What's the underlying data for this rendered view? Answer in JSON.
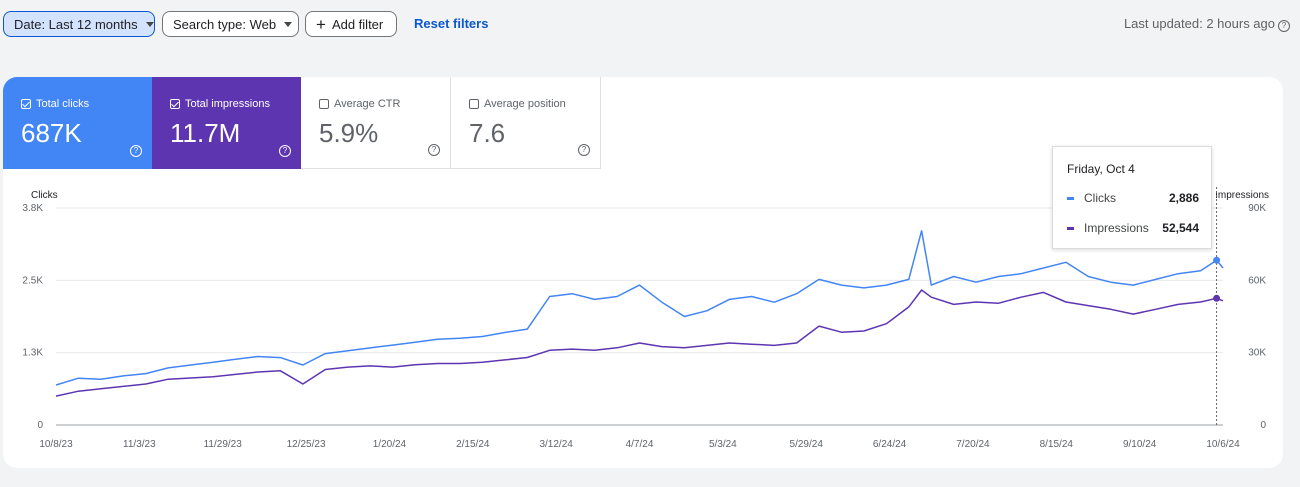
{
  "filters": {
    "date_label": "Date: Last 12 months",
    "search_type_label": "Search type: Web",
    "add_filter_label": "Add filter",
    "reset_label": "Reset filters",
    "last_updated": "Last updated: 2 hours ago"
  },
  "metrics": [
    {
      "label": "Total clicks",
      "value": "687K",
      "checked": true,
      "color": "#4285f4"
    },
    {
      "label": "Total impressions",
      "value": "11.7M",
      "checked": true,
      "color": "#5e35b1"
    },
    {
      "label": "Average CTR",
      "value": "5.9%",
      "checked": false
    },
    {
      "label": "Average position",
      "value": "7.6",
      "checked": false
    }
  ],
  "tooltip": {
    "date": "Friday, Oct 4",
    "clicks_label": "Clicks",
    "clicks_value": "2,886",
    "impressions_label": "Impressions",
    "impressions_value": "52,544"
  },
  "chart_data": {
    "type": "line",
    "left_axis_label": "Clicks",
    "right_axis_label": "Impressions",
    "left_ticks": [
      "0",
      "1.3K",
      "2.5K",
      "3.8K"
    ],
    "right_ticks": [
      "0",
      "30K",
      "60K",
      "90K"
    ],
    "left_ylim": [
      0,
      3800
    ],
    "right_ylim": [
      0,
      90000
    ],
    "x_ticks": [
      "10/8/23",
      "11/3/23",
      "11/29/23",
      "12/25/23",
      "1/20/24",
      "2/15/24",
      "3/12/24",
      "4/7/24",
      "5/3/24",
      "5/29/24",
      "6/24/24",
      "7/20/24",
      "8/15/24",
      "9/10/24",
      "10/6/24"
    ],
    "x_range": [
      "2023-10-08",
      "2024-10-06"
    ],
    "grid": true,
    "highlight_date": "2024-10-04",
    "series": [
      {
        "name": "Clicks",
        "axis": "left",
        "color": "#4285f4",
        "points": [
          [
            "2023-10-08",
            700
          ],
          [
            "2023-10-15",
            820
          ],
          [
            "2023-10-22",
            800
          ],
          [
            "2023-10-29",
            860
          ],
          [
            "2023-11-05",
            900
          ],
          [
            "2023-11-12",
            1000
          ],
          [
            "2023-11-19",
            1050
          ],
          [
            "2023-11-26",
            1100
          ],
          [
            "2023-12-03",
            1150
          ],
          [
            "2023-12-10",
            1200
          ],
          [
            "2023-12-17",
            1180
          ],
          [
            "2023-12-24",
            1050
          ],
          [
            "2023-12-31",
            1250
          ],
          [
            "2024-01-07",
            1300
          ],
          [
            "2024-01-14",
            1350
          ],
          [
            "2024-01-21",
            1400
          ],
          [
            "2024-01-28",
            1450
          ],
          [
            "2024-02-04",
            1500
          ],
          [
            "2024-02-11",
            1520
          ],
          [
            "2024-02-18",
            1550
          ],
          [
            "2024-02-25",
            1620
          ],
          [
            "2024-03-03",
            1680
          ],
          [
            "2024-03-10",
            2250
          ],
          [
            "2024-03-17",
            2300
          ],
          [
            "2024-03-24",
            2200
          ],
          [
            "2024-03-31",
            2250
          ],
          [
            "2024-04-07",
            2450
          ],
          [
            "2024-04-14",
            2150
          ],
          [
            "2024-04-21",
            1900
          ],
          [
            "2024-04-28",
            2000
          ],
          [
            "2024-05-05",
            2200
          ],
          [
            "2024-05-12",
            2250
          ],
          [
            "2024-05-19",
            2150
          ],
          [
            "2024-05-26",
            2300
          ],
          [
            "2024-06-02",
            2550
          ],
          [
            "2024-06-09",
            2450
          ],
          [
            "2024-06-16",
            2400
          ],
          [
            "2024-06-23",
            2450
          ],
          [
            "2024-06-30",
            2550
          ],
          [
            "2024-07-04",
            3400
          ],
          [
            "2024-07-07",
            2450
          ],
          [
            "2024-07-14",
            2600
          ],
          [
            "2024-07-21",
            2500
          ],
          [
            "2024-07-28",
            2600
          ],
          [
            "2024-08-04",
            2650
          ],
          [
            "2024-08-11",
            2750
          ],
          [
            "2024-08-18",
            2850
          ],
          [
            "2024-08-25",
            2600
          ],
          [
            "2024-09-01",
            2500
          ],
          [
            "2024-09-08",
            2450
          ],
          [
            "2024-09-15",
            2550
          ],
          [
            "2024-09-22",
            2650
          ],
          [
            "2024-09-29",
            2700
          ],
          [
            "2024-10-04",
            2886
          ],
          [
            "2024-10-06",
            2750
          ]
        ]
      },
      {
        "name": "Impressions",
        "axis": "right",
        "color": "#5e35b1",
        "points": [
          [
            "2023-10-08",
            12000
          ],
          [
            "2023-10-15",
            14000
          ],
          [
            "2023-10-22",
            15000
          ],
          [
            "2023-10-29",
            16000
          ],
          [
            "2023-11-05",
            17000
          ],
          [
            "2023-11-12",
            19000
          ],
          [
            "2023-11-19",
            19500
          ],
          [
            "2023-11-26",
            20000
          ],
          [
            "2023-12-03",
            21000
          ],
          [
            "2023-12-10",
            22000
          ],
          [
            "2023-12-17",
            22500
          ],
          [
            "2023-12-24",
            17000
          ],
          [
            "2023-12-31",
            23000
          ],
          [
            "2024-01-07",
            24000
          ],
          [
            "2024-01-14",
            24500
          ],
          [
            "2024-01-21",
            24000
          ],
          [
            "2024-01-28",
            25000
          ],
          [
            "2024-02-04",
            25500
          ],
          [
            "2024-02-11",
            25500
          ],
          [
            "2024-02-18",
            26000
          ],
          [
            "2024-02-25",
            27000
          ],
          [
            "2024-03-03",
            28000
          ],
          [
            "2024-03-10",
            31000
          ],
          [
            "2024-03-17",
            31500
          ],
          [
            "2024-03-24",
            31000
          ],
          [
            "2024-03-31",
            32000
          ],
          [
            "2024-04-07",
            34000
          ],
          [
            "2024-04-14",
            32500
          ],
          [
            "2024-04-21",
            32000
          ],
          [
            "2024-04-28",
            33000
          ],
          [
            "2024-05-05",
            34000
          ],
          [
            "2024-05-12",
            33500
          ],
          [
            "2024-05-19",
            33000
          ],
          [
            "2024-05-26",
            34000
          ],
          [
            "2024-06-02",
            41000
          ],
          [
            "2024-06-09",
            38500
          ],
          [
            "2024-06-16",
            39000
          ],
          [
            "2024-06-23",
            42000
          ],
          [
            "2024-06-30",
            49000
          ],
          [
            "2024-07-04",
            56000
          ],
          [
            "2024-07-07",
            53000
          ],
          [
            "2024-07-14",
            50000
          ],
          [
            "2024-07-21",
            51000
          ],
          [
            "2024-07-28",
            50500
          ],
          [
            "2024-08-04",
            53000
          ],
          [
            "2024-08-11",
            55000
          ],
          [
            "2024-08-18",
            51000
          ],
          [
            "2024-08-25",
            49500
          ],
          [
            "2024-09-01",
            48000
          ],
          [
            "2024-09-08",
            46000
          ],
          [
            "2024-09-15",
            48000
          ],
          [
            "2024-09-22",
            50000
          ],
          [
            "2024-09-29",
            51000
          ],
          [
            "2024-10-04",
            52544
          ],
          [
            "2024-10-06",
            51500
          ]
        ]
      }
    ]
  }
}
